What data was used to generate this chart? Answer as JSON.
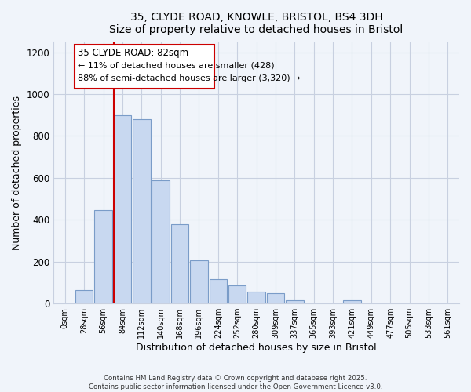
{
  "title": "35, CLYDE ROAD, KNOWLE, BRISTOL, BS4 3DH",
  "subtitle": "Size of property relative to detached houses in Bristol",
  "xlabel": "Distribution of detached houses by size in Bristol",
  "ylabel": "Number of detached properties",
  "bar_labels": [
    "0sqm",
    "28sqm",
    "56sqm",
    "84sqm",
    "112sqm",
    "140sqm",
    "168sqm",
    "196sqm",
    "224sqm",
    "252sqm",
    "280sqm",
    "309sqm",
    "337sqm",
    "365sqm",
    "393sqm",
    "421sqm",
    "449sqm",
    "477sqm",
    "505sqm",
    "533sqm",
    "561sqm"
  ],
  "bar_values": [
    0,
    65,
    445,
    900,
    880,
    590,
    380,
    205,
    115,
    88,
    55,
    48,
    17,
    0,
    0,
    15,
    0,
    0,
    0,
    0,
    0
  ],
  "bar_color": "#c8d8f0",
  "bar_edge_color": "#7a9cc8",
  "vline_label": "35 CLYDE ROAD: 82sqm",
  "annotation_line1": "← 11% of detached houses are smaller (428)",
  "annotation_line2": "88% of semi-detached houses are larger (3,320) →",
  "annotation_box_color": "#ffffff",
  "annotation_box_edge": "#cc0000",
  "vline_color": "#cc0000",
  "ylim": [
    0,
    1250
  ],
  "yticks": [
    0,
    200,
    400,
    600,
    800,
    1000,
    1200
  ],
  "footer1": "Contains HM Land Registry data © Crown copyright and database right 2025.",
  "footer2": "Contains public sector information licensed under the Open Government Licence v3.0.",
  "bg_color": "#f0f4fa",
  "grid_color": "#c8d0e0"
}
